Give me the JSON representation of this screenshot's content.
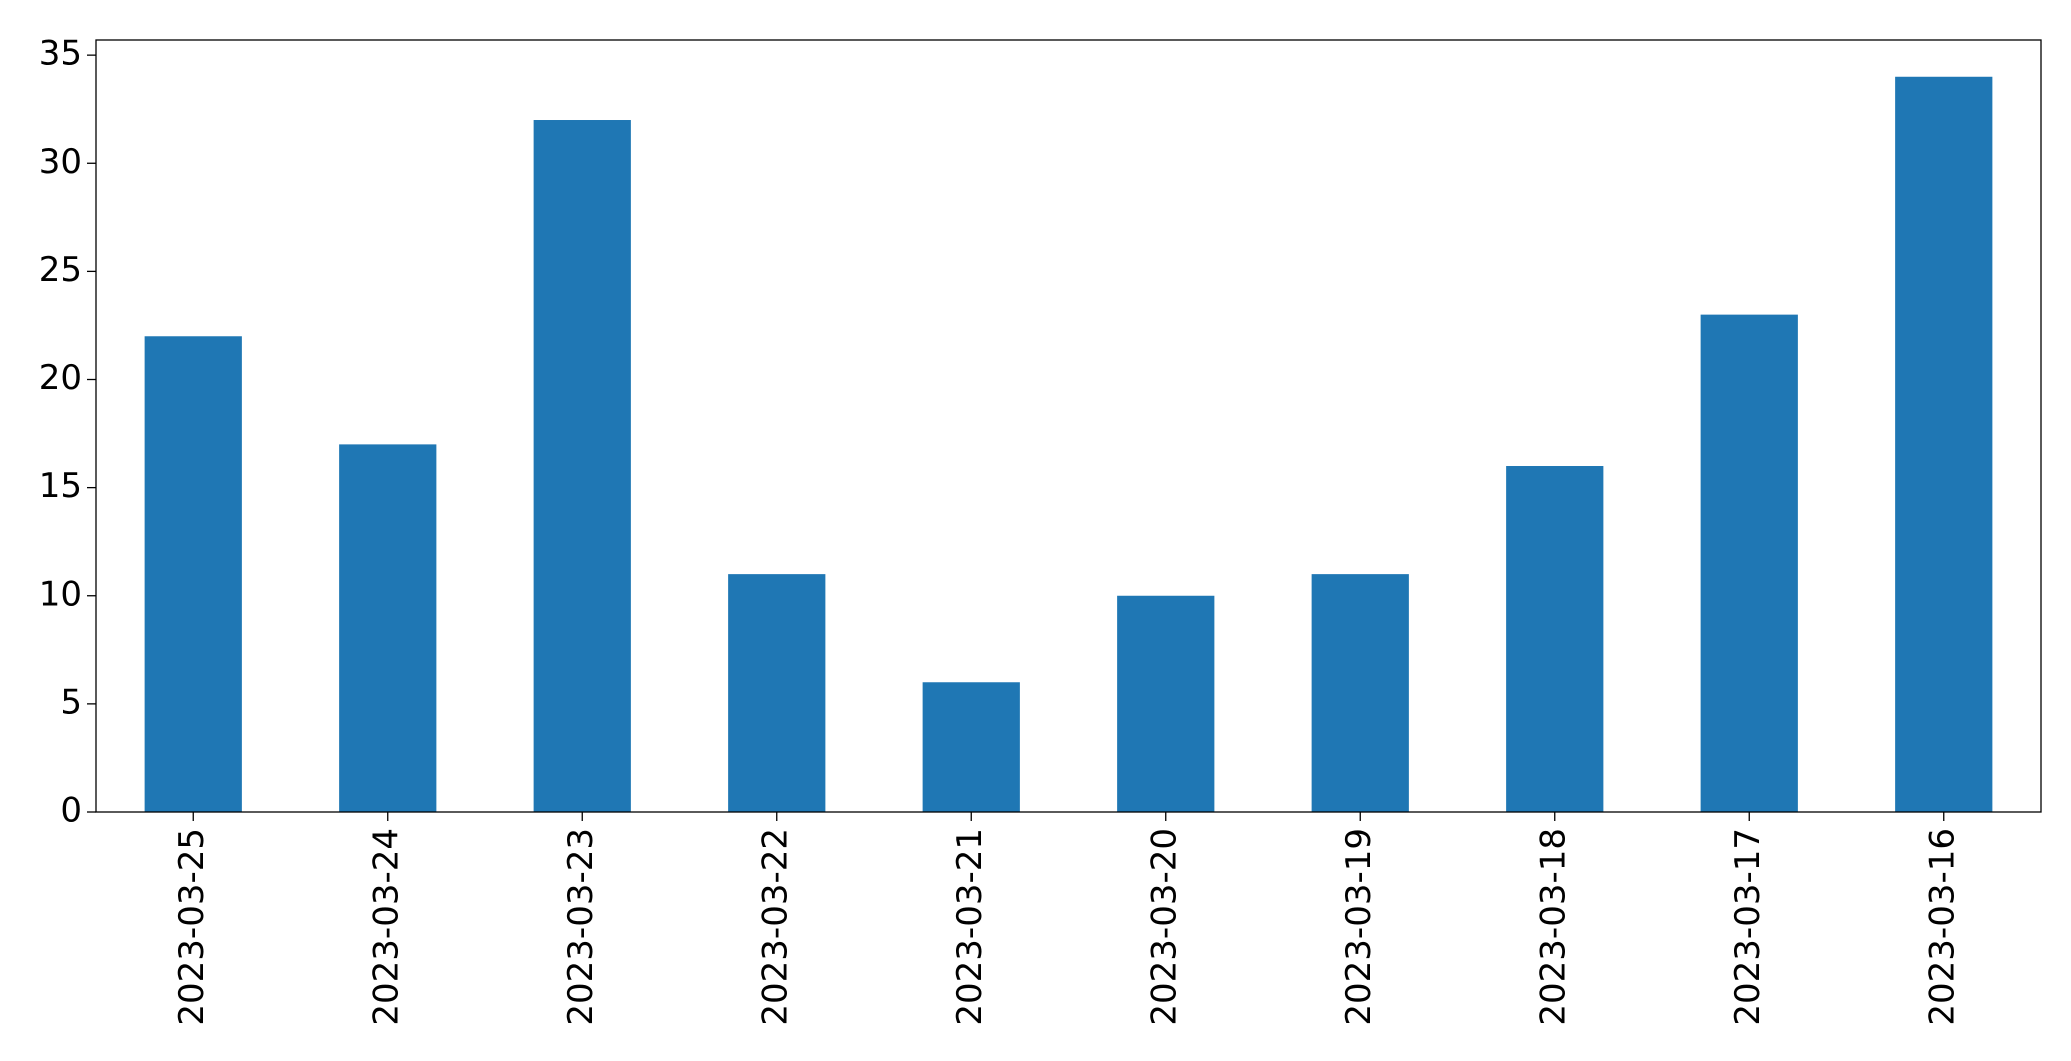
{
  "chart_data": {
    "type": "bar",
    "categories": [
      "2023-03-25",
      "2023-03-24",
      "2023-03-23",
      "2023-03-22",
      "2023-03-21",
      "2023-03-20",
      "2023-03-19",
      "2023-03-18",
      "2023-03-17",
      "2023-03-16"
    ],
    "values": [
      22,
      17,
      32,
      11,
      6,
      10,
      11,
      16,
      23,
      34
    ],
    "color": "#1f77b4",
    "ylim": [
      0,
      35.7
    ],
    "yticks": [
      0,
      5,
      10,
      15,
      20,
      25,
      30,
      35
    ],
    "grid": false
  }
}
